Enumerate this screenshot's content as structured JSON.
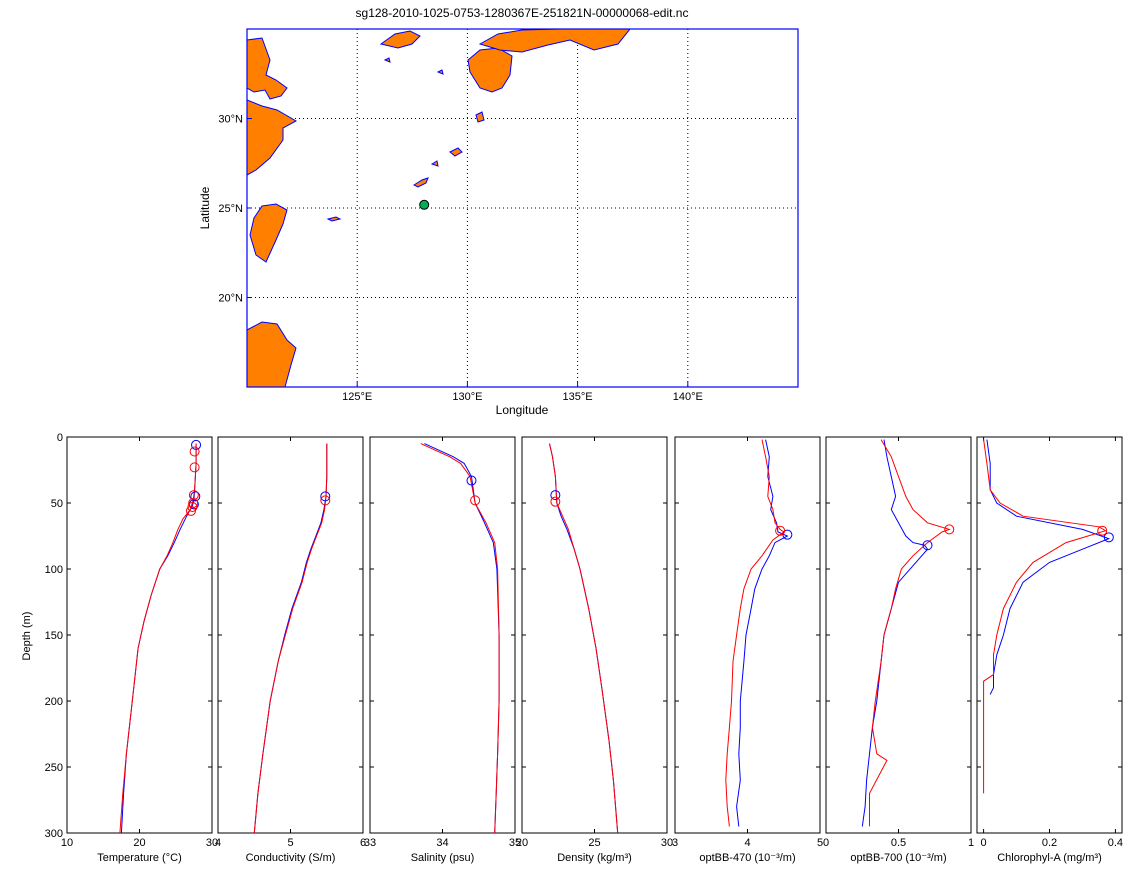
{
  "map": {
    "title": "sg128-2010-1025-0753-1280367E-251821N-00000068-edit.nc",
    "xlabel": "Longitude",
    "ylabel": "Latitude",
    "xlim": [
      120,
      145
    ],
    "ylim": [
      15,
      35
    ],
    "lon_ticks": [
      125,
      130,
      135,
      140
    ],
    "lat_ticks": [
      20,
      25,
      30
    ],
    "lon_tick_labels": [
      "125°E",
      "130°E",
      "135°E",
      "140°E"
    ],
    "lat_tick_labels": [
      "20°N",
      "25°N",
      "30°N"
    ],
    "marker": {
      "lon": 128.04,
      "lat": 25.18
    },
    "colors": {
      "land": "#ff8000",
      "coast": "#0000ff",
      "frame": "#0000ff",
      "marker_fill": "#00b050"
    }
  },
  "chart_data": [
    {
      "type": "line",
      "xlabel": "Temperature (°C)",
      "ylabel": "Depth (m)",
      "xlim": [
        10,
        30
      ],
      "xticks": [
        10,
        20,
        30
      ],
      "xtick_labels": [
        "10",
        "20",
        "30"
      ],
      "ylim": [
        0,
        300
      ],
      "yticks": [
        0,
        50,
        100,
        150,
        200,
        250,
        300
      ],
      "ytick_labels": [
        "0",
        "50",
        "100",
        "150",
        "200",
        "250",
        "300"
      ],
      "series": [
        {
          "color": "#0000ff",
          "x": [
            27.8,
            27.8,
            27.6,
            27.5,
            27.3,
            26.5,
            25.6,
            24.8,
            23.9,
            22.8,
            21.6,
            20.6,
            19.8,
            19.0,
            18.2,
            17.8,
            17.5
          ],
          "y": [
            5,
            20,
            40,
            48,
            52,
            60,
            70,
            80,
            90,
            100,
            120,
            140,
            160,
            200,
            240,
            270,
            300
          ]
        },
        {
          "color": "#ff0000",
          "x": [
            27.8,
            27.8,
            27.6,
            27.4,
            27.0,
            26.0,
            25.3,
            24.6,
            23.8,
            22.8,
            21.6,
            20.6,
            19.8,
            19.0,
            18.2,
            17.7,
            17.3
          ],
          "y": [
            5,
            20,
            40,
            48,
            55,
            62,
            70,
            80,
            90,
            100,
            120,
            140,
            160,
            200,
            240,
            270,
            300
          ]
        }
      ],
      "markers": [
        {
          "color": "#0000ff",
          "x": 27.8,
          "y": 6
        },
        {
          "color": "#0000ff",
          "x": 27.7,
          "y": 45
        },
        {
          "color": "#0000ff",
          "x": 27.5,
          "y": 51
        },
        {
          "color": "#ff0000",
          "x": 27.6,
          "y": 11
        },
        {
          "color": "#ff0000",
          "x": 27.6,
          "y": 23
        },
        {
          "color": "#ff0000",
          "x": 27.5,
          "y": 44
        },
        {
          "color": "#ff0000",
          "x": 27.4,
          "y": 50
        },
        {
          "color": "#ff0000",
          "x": 27.3,
          "y": 53
        },
        {
          "color": "#ff0000",
          "x": 27.1,
          "y": 56
        }
      ]
    },
    {
      "type": "line",
      "xlabel": "Conductivity (S/m)",
      "xlim": [
        4,
        6
      ],
      "xticks": [
        4,
        5,
        6
      ],
      "xtick_labels": [
        "4",
        "5",
        "6"
      ],
      "ylim": [
        0,
        300
      ],
      "series": [
        {
          "color": "#0000ff",
          "x": [
            5.5,
            5.5,
            5.49,
            5.46,
            5.42,
            5.35,
            5.28,
            5.22,
            5.15,
            5.02,
            4.92,
            4.83,
            4.72,
            4.62,
            4.55,
            4.5
          ],
          "y": [
            5,
            30,
            45,
            55,
            65,
            75,
            85,
            95,
            110,
            130,
            150,
            170,
            200,
            240,
            270,
            300
          ]
        },
        {
          "color": "#ff0000",
          "x": [
            5.5,
            5.5,
            5.49,
            5.47,
            5.43,
            5.36,
            5.29,
            5.23,
            5.16,
            5.03,
            4.93,
            4.83,
            4.72,
            4.62,
            4.55,
            4.5
          ],
          "y": [
            5,
            30,
            45,
            55,
            65,
            75,
            85,
            95,
            110,
            130,
            150,
            170,
            200,
            240,
            270,
            300
          ]
        }
      ],
      "markers": [
        {
          "color": "#0000ff",
          "x": 5.48,
          "y": 45
        },
        {
          "color": "#ff0000",
          "x": 5.48,
          "y": 48
        }
      ]
    },
    {
      "type": "line",
      "xlabel": "Salinity (psu)",
      "xlim": [
        33,
        35
      ],
      "xticks": [
        33,
        34,
        35
      ],
      "xtick_labels": [
        "33",
        "34",
        "35"
      ],
      "ylim": [
        0,
        300
      ],
      "series": [
        {
          "color": "#0000ff",
          "x": [
            33.75,
            33.95,
            34.15,
            34.3,
            34.4,
            34.45,
            34.58,
            34.7,
            34.75,
            34.78,
            34.78,
            34.76,
            34.74,
            34.72
          ],
          "y": [
            5,
            10,
            15,
            20,
            30,
            50,
            65,
            80,
            100,
            150,
            200,
            240,
            270,
            300
          ]
        },
        {
          "color": "#ff0000",
          "x": [
            33.7,
            33.9,
            34.1,
            34.25,
            34.38,
            34.45,
            34.6,
            34.72,
            34.76,
            34.78,
            34.78,
            34.76,
            34.74,
            34.72
          ],
          "y": [
            5,
            10,
            15,
            20,
            30,
            50,
            65,
            80,
            100,
            150,
            200,
            240,
            270,
            300
          ]
        }
      ],
      "markers": [
        {
          "color": "#0000ff",
          "x": 34.4,
          "y": 33
        },
        {
          "color": "#ff0000",
          "x": 34.45,
          "y": 48
        }
      ]
    },
    {
      "type": "line",
      "xlabel": "Density (kg/m³)",
      "xlim": [
        20,
        30
      ],
      "xticks": [
        20,
        25,
        30
      ],
      "xtick_labels": [
        "20",
        "25",
        "30"
      ],
      "ylim": [
        0,
        300
      ],
      "series": [
        {
          "color": "#0000ff",
          "x": [
            21.9,
            22.1,
            22.3,
            22.4,
            22.7,
            23.1,
            23.6,
            24.0,
            24.6,
            25.1,
            25.5,
            26.0,
            26.3,
            26.6
          ],
          "y": [
            5,
            15,
            30,
            50,
            60,
            70,
            85,
            100,
            130,
            160,
            190,
            230,
            260,
            300
          ]
        },
        {
          "color": "#ff0000",
          "x": [
            21.9,
            22.1,
            22.3,
            22.4,
            22.8,
            23.2,
            23.6,
            24.0,
            24.6,
            25.1,
            25.5,
            26.0,
            26.3,
            26.6
          ],
          "y": [
            5,
            15,
            30,
            50,
            60,
            70,
            85,
            100,
            130,
            160,
            190,
            230,
            260,
            300
          ]
        }
      ],
      "markers": [
        {
          "color": "#0000ff",
          "x": 22.3,
          "y": 44
        },
        {
          "color": "#ff0000",
          "x": 22.3,
          "y": 49
        }
      ]
    },
    {
      "type": "line",
      "xlabel": "optBB-470 (10⁻³/m)",
      "xlim": [
        3,
        5
      ],
      "xticks": [
        3,
        4,
        5
      ],
      "xtick_labels": [
        "3",
        "4",
        "5"
      ],
      "ylim": [
        0,
        300
      ],
      "series": [
        {
          "color": "#0000ff",
          "x": [
            4.25,
            4.3,
            4.28,
            4.35,
            4.32,
            4.4,
            4.42,
            4.55,
            4.38,
            4.3,
            4.2,
            4.1,
            4.05,
            3.98,
            3.95,
            3.9,
            3.9,
            3.88,
            3.9,
            3.85,
            3.88
          ],
          "y": [
            2,
            15,
            30,
            45,
            55,
            65,
            72,
            75,
            80,
            90,
            100,
            115,
            130,
            150,
            170,
            200,
            220,
            240,
            260,
            280,
            295
          ]
        },
        {
          "color": "#ff0000",
          "x": [
            4.2,
            4.25,
            4.3,
            4.28,
            4.35,
            4.38,
            4.45,
            4.5,
            4.35,
            4.2,
            4.05,
            3.95,
            3.9,
            3.85,
            3.8,
            3.78,
            3.75,
            3.72,
            3.7,
            3.72,
            3.75
          ],
          "y": [
            2,
            15,
            30,
            45,
            55,
            65,
            70,
            72,
            78,
            90,
            100,
            115,
            130,
            150,
            170,
            200,
            220,
            240,
            260,
            280,
            295
          ]
        }
      ],
      "markers": [
        {
          "color": "#0000ff",
          "x": 4.55,
          "y": 74
        },
        {
          "color": "#ff0000",
          "x": 4.45,
          "y": 71
        }
      ]
    },
    {
      "type": "line",
      "xlabel": "optBB-700 (10⁻³/m)",
      "xlim": [
        0,
        1
      ],
      "xticks": [
        0,
        0.5,
        1
      ],
      "xtick_labels": [
        "0",
        "0.5",
        "1"
      ],
      "ylim": [
        0,
        300
      ],
      "series": [
        {
          "color": "#0000ff",
          "x": [
            0.4,
            0.42,
            0.45,
            0.48,
            0.45,
            0.5,
            0.55,
            0.6,
            0.68,
            0.7,
            0.62,
            0.5,
            0.45,
            0.4,
            0.38,
            0.35,
            0.32,
            0.3,
            0.28,
            0.27,
            0.25
          ],
          "y": [
            2,
            15,
            30,
            45,
            55,
            65,
            75,
            80,
            82,
            85,
            95,
            110,
            130,
            150,
            170,
            200,
            220,
            240,
            260,
            280,
            295
          ]
        },
        {
          "color": "#ff0000",
          "x": [
            0.38,
            0.45,
            0.5,
            0.55,
            0.6,
            0.7,
            0.85,
            0.8,
            0.7,
            0.6,
            0.52,
            0.48,
            0.45,
            0.4,
            0.38,
            0.34,
            0.32,
            0.35,
            0.42,
            0.3,
            0.3
          ],
          "y": [
            2,
            15,
            30,
            45,
            55,
            65,
            70,
            72,
            80,
            90,
            100,
            115,
            130,
            150,
            170,
            200,
            220,
            240,
            245,
            270,
            295
          ]
        }
      ],
      "markers": [
        {
          "color": "#0000ff",
          "x": 0.7,
          "y": 82
        },
        {
          "color": "#ff0000",
          "x": 0.85,
          "y": 70
        }
      ]
    },
    {
      "type": "line",
      "xlabel": "Chlorophyl-A (mg/m³)",
      "xlim": [
        -0.02,
        0.42
      ],
      "xticks": [
        0,
        0.2,
        0.4
      ],
      "xtick_labels": [
        "0",
        "0.2",
        "0.4"
      ],
      "ylim": [
        0,
        300
      ],
      "series": [
        {
          "color": "#0000ff",
          "x": [
            0.01,
            0.02,
            0.02,
            0.04,
            0.1,
            0.3,
            0.38,
            0.3,
            0.2,
            0.12,
            0.08,
            0.06,
            0.04,
            0.03,
            0.03,
            0.02
          ],
          "y": [
            2,
            20,
            40,
            50,
            60,
            70,
            77,
            85,
            95,
            110,
            130,
            150,
            165,
            180,
            190,
            195
          ]
        },
        {
          "color": "#ff0000",
          "x": [
            0.0,
            0.01,
            0.02,
            0.05,
            0.12,
            0.35,
            0.37,
            0.25,
            0.15,
            0.1,
            0.06,
            0.04,
            0.03,
            0.03,
            0.0,
            0.0,
            0.0
          ],
          "y": [
            2,
            20,
            40,
            50,
            60,
            68,
            71,
            80,
            95,
            110,
            130,
            150,
            165,
            180,
            185,
            230,
            270
          ]
        }
      ],
      "markers": [
        {
          "color": "#0000ff",
          "x": 0.38,
          "y": 76
        },
        {
          "color": "#ff0000",
          "x": 0.36,
          "y": 71
        }
      ]
    }
  ]
}
